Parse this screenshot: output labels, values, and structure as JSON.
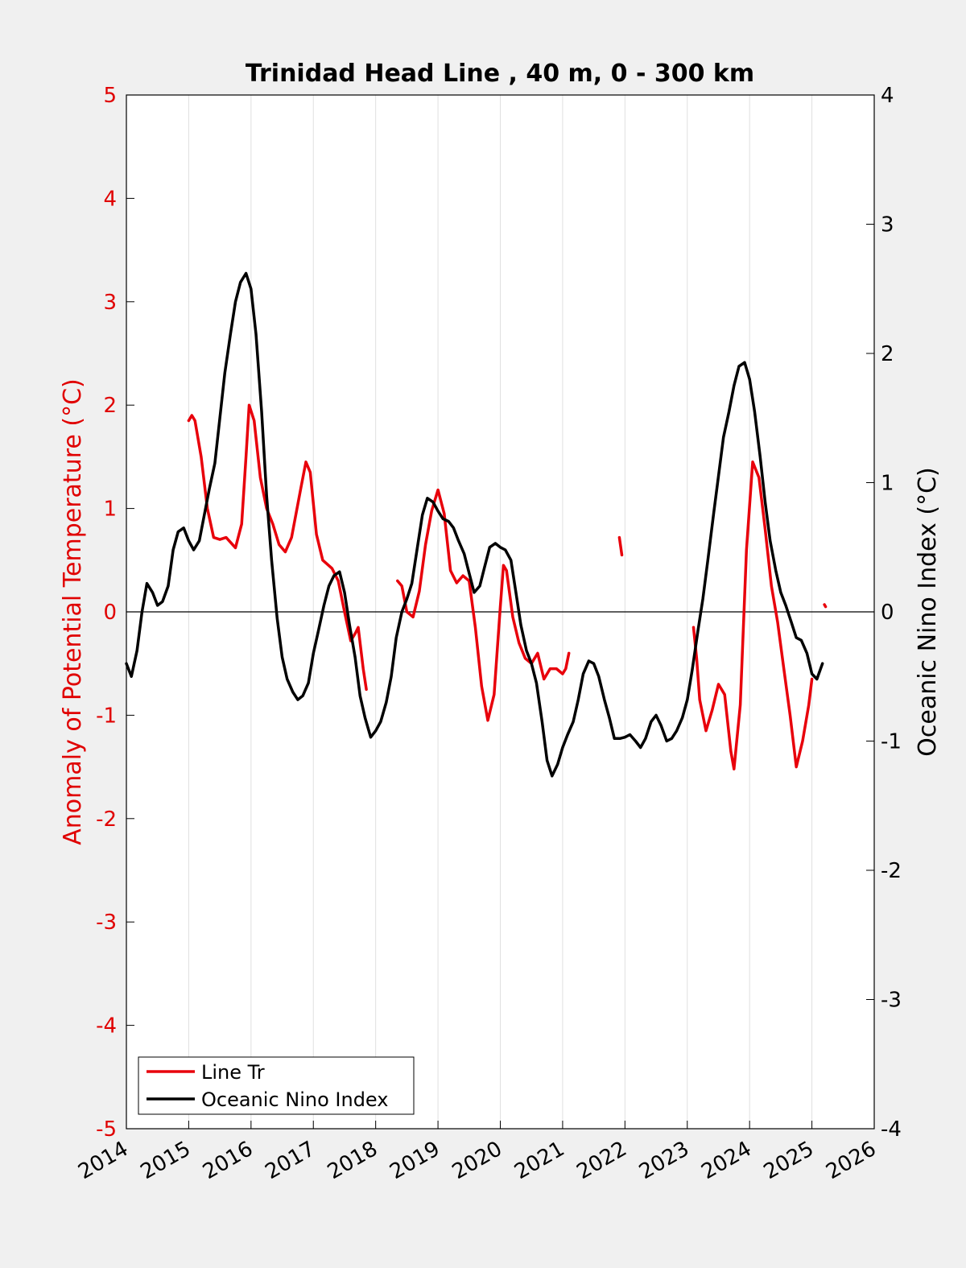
{
  "chart_data": {
    "type": "line",
    "title": "Trinidad Head Line , 40 m, 0 - 300 km",
    "ylabel_left": "Anomaly of Potential Temperature (°C)",
    "ylabel_right": "Oceanic Nino Index (°C)",
    "xlim": [
      2014,
      2026
    ],
    "ylim_left": [
      -5,
      5
    ],
    "ylim_right": [
      -4,
      4
    ],
    "x_ticks": [
      "2014",
      "2015",
      "2016",
      "2017",
      "2018",
      "2019",
      "2020",
      "2021",
      "2022",
      "2023",
      "2024",
      "2025",
      "2026"
    ],
    "y_left_ticks": [
      "5",
      "4",
      "3",
      "2",
      "1",
      "0",
      "-1",
      "-2",
      "-3",
      "-4",
      "-5"
    ],
    "y_right_ticks": [
      "4",
      "3",
      "2",
      "1",
      "0",
      "-1",
      "-2",
      "-3",
      "-4"
    ],
    "vertical_grid": true,
    "zero_line": true,
    "legend_position": "bottom-left",
    "colors": {
      "left_axis": "#e00000",
      "line_tr": "#e8000b",
      "oni": "#000000",
      "plot_bg": "#ffffff",
      "figure_bg": "#f0f0f0",
      "grid": "#e0e0e0"
    },
    "series": [
      {
        "name": "Line Tr",
        "axis": "left",
        "color": "#e8000b",
        "segments": [
          [
            [
              2015.0,
              1.85
            ],
            [
              2015.05,
              1.9
            ],
            [
              2015.1,
              1.85
            ],
            [
              2015.2,
              1.5
            ],
            [
              2015.3,
              1.0
            ],
            [
              2015.4,
              0.72
            ],
            [
              2015.5,
              0.7
            ],
            [
              2015.6,
              0.72
            ],
            [
              2015.75,
              0.62
            ],
            [
              2015.85,
              0.85
            ],
            [
              2015.92,
              1.5
            ],
            [
              2015.97,
              2.0
            ],
            [
              2016.05,
              1.85
            ],
            [
              2016.15,
              1.3
            ],
            [
              2016.25,
              1.0
            ],
            [
              2016.35,
              0.85
            ],
            [
              2016.45,
              0.65
            ],
            [
              2016.55,
              0.58
            ],
            [
              2016.65,
              0.72
            ],
            [
              2016.8,
              1.2
            ],
            [
              2016.88,
              1.45
            ],
            [
              2016.95,
              1.35
            ],
            [
              2017.05,
              0.75
            ],
            [
              2017.15,
              0.5
            ],
            [
              2017.3,
              0.42
            ],
            [
              2017.4,
              0.3
            ],
            [
              2017.5,
              0.0
            ],
            [
              2017.6,
              -0.28
            ],
            [
              2017.68,
              -0.2
            ],
            [
              2017.72,
              -0.15
            ],
            [
              2017.8,
              -0.55
            ],
            [
              2017.85,
              -0.75
            ]
          ],
          [
            [
              2018.35,
              0.3
            ],
            [
              2018.42,
              0.25
            ],
            [
              2018.5,
              0.0
            ],
            [
              2018.6,
              -0.05
            ],
            [
              2018.7,
              0.2
            ],
            [
              2018.8,
              0.65
            ],
            [
              2018.9,
              0.98
            ],
            [
              2019.0,
              1.18
            ],
            [
              2019.1,
              0.95
            ],
            [
              2019.2,
              0.4
            ],
            [
              2019.3,
              0.28
            ],
            [
              2019.4,
              0.35
            ],
            [
              2019.5,
              0.3
            ],
            [
              2019.6,
              -0.15
            ],
            [
              2019.7,
              -0.72
            ],
            [
              2019.8,
              -1.05
            ],
            [
              2019.9,
              -0.8
            ],
            [
              2020.0,
              0.05
            ],
            [
              2020.05,
              0.45
            ],
            [
              2020.1,
              0.4
            ],
            [
              2020.2,
              -0.05
            ],
            [
              2020.3,
              -0.3
            ],
            [
              2020.4,
              -0.45
            ],
            [
              2020.5,
              -0.5
            ],
            [
              2020.6,
              -0.4
            ],
            [
              2020.7,
              -0.65
            ],
            [
              2020.8,
              -0.55
            ],
            [
              2020.9,
              -0.55
            ],
            [
              2021.0,
              -0.6
            ],
            [
              2021.05,
              -0.55
            ],
            [
              2021.1,
              -0.4
            ]
          ],
          [
            [
              2021.91,
              0.72
            ],
            [
              2021.95,
              0.55
            ]
          ],
          [
            [
              2023.1,
              -0.15
            ],
            [
              2023.15,
              -0.45
            ],
            [
              2023.2,
              -0.85
            ],
            [
              2023.3,
              -1.15
            ],
            [
              2023.4,
              -0.95
            ],
            [
              2023.5,
              -0.7
            ],
            [
              2023.6,
              -0.8
            ],
            [
              2023.7,
              -1.35
            ],
            [
              2023.75,
              -1.52
            ],
            [
              2023.85,
              -0.9
            ],
            [
              2023.95,
              0.6
            ],
            [
              2024.05,
              1.45
            ],
            [
              2024.15,
              1.3
            ],
            [
              2024.25,
              0.8
            ],
            [
              2024.35,
              0.25
            ],
            [
              2024.45,
              -0.1
            ],
            [
              2024.55,
              -0.55
            ],
            [
              2024.65,
              -1.0
            ],
            [
              2024.75,
              -1.5
            ],
            [
              2024.85,
              -1.25
            ],
            [
              2024.95,
              -0.9
            ],
            [
              2025.0,
              -0.65
            ]
          ],
          [
            [
              2025.2,
              0.07
            ],
            [
              2025.22,
              0.05
            ]
          ]
        ]
      },
      {
        "name": "Oceanic Nino Index",
        "axis": "right",
        "color": "#000000",
        "points": [
          [
            2014.0,
            -0.4
          ],
          [
            2014.08,
            -0.5
          ],
          [
            2014.17,
            -0.3
          ],
          [
            2014.25,
            0.0
          ],
          [
            2014.33,
            0.22
          ],
          [
            2014.42,
            0.15
          ],
          [
            2014.5,
            0.05
          ],
          [
            2014.58,
            0.08
          ],
          [
            2014.67,
            0.2
          ],
          [
            2014.75,
            0.48
          ],
          [
            2014.83,
            0.62
          ],
          [
            2014.92,
            0.65
          ],
          [
            2015.0,
            0.55
          ],
          [
            2015.08,
            0.48
          ],
          [
            2015.17,
            0.55
          ],
          [
            2015.25,
            0.75
          ],
          [
            2015.33,
            0.95
          ],
          [
            2015.42,
            1.15
          ],
          [
            2015.5,
            1.5
          ],
          [
            2015.58,
            1.85
          ],
          [
            2015.67,
            2.15
          ],
          [
            2015.75,
            2.4
          ],
          [
            2015.83,
            2.55
          ],
          [
            2015.92,
            2.62
          ],
          [
            2016.0,
            2.5
          ],
          [
            2016.08,
            2.15
          ],
          [
            2016.17,
            1.55
          ],
          [
            2016.25,
            0.9
          ],
          [
            2016.33,
            0.4
          ],
          [
            2016.42,
            -0.05
          ],
          [
            2016.5,
            -0.35
          ],
          [
            2016.58,
            -0.52
          ],
          [
            2016.67,
            -0.62
          ],
          [
            2016.75,
            -0.68
          ],
          [
            2016.83,
            -0.65
          ],
          [
            2016.92,
            -0.55
          ],
          [
            2017.0,
            -0.32
          ],
          [
            2017.08,
            -0.15
          ],
          [
            2017.17,
            0.05
          ],
          [
            2017.25,
            0.2
          ],
          [
            2017.33,
            0.28
          ],
          [
            2017.42,
            0.31
          ],
          [
            2017.5,
            0.15
          ],
          [
            2017.58,
            -0.1
          ],
          [
            2017.67,
            -0.35
          ],
          [
            2017.75,
            -0.65
          ],
          [
            2017.83,
            -0.82
          ],
          [
            2017.92,
            -0.97
          ],
          [
            2018.0,
            -0.92
          ],
          [
            2018.08,
            -0.85
          ],
          [
            2018.17,
            -0.7
          ],
          [
            2018.25,
            -0.5
          ],
          [
            2018.33,
            -0.2
          ],
          [
            2018.42,
            0.0
          ],
          [
            2018.5,
            0.1
          ],
          [
            2018.58,
            0.22
          ],
          [
            2018.67,
            0.5
          ],
          [
            2018.75,
            0.75
          ],
          [
            2018.83,
            0.88
          ],
          [
            2018.92,
            0.85
          ],
          [
            2019.0,
            0.78
          ],
          [
            2019.08,
            0.72
          ],
          [
            2019.17,
            0.7
          ],
          [
            2019.25,
            0.65
          ],
          [
            2019.33,
            0.55
          ],
          [
            2019.42,
            0.45
          ],
          [
            2019.5,
            0.3
          ],
          [
            2019.58,
            0.15
          ],
          [
            2019.67,
            0.2
          ],
          [
            2019.75,
            0.35
          ],
          [
            2019.83,
            0.5
          ],
          [
            2019.92,
            0.53
          ],
          [
            2020.0,
            0.5
          ],
          [
            2020.08,
            0.48
          ],
          [
            2020.17,
            0.4
          ],
          [
            2020.25,
            0.15
          ],
          [
            2020.33,
            -0.1
          ],
          [
            2020.42,
            -0.3
          ],
          [
            2020.5,
            -0.4
          ],
          [
            2020.58,
            -0.55
          ],
          [
            2020.67,
            -0.85
          ],
          [
            2020.75,
            -1.15
          ],
          [
            2020.83,
            -1.27
          ],
          [
            2020.92,
            -1.18
          ],
          [
            2021.0,
            -1.05
          ],
          [
            2021.08,
            -0.95
          ],
          [
            2021.17,
            -0.85
          ],
          [
            2021.25,
            -0.68
          ],
          [
            2021.33,
            -0.48
          ],
          [
            2021.42,
            -0.38
          ],
          [
            2021.5,
            -0.4
          ],
          [
            2021.58,
            -0.5
          ],
          [
            2021.67,
            -0.68
          ],
          [
            2021.75,
            -0.82
          ],
          [
            2021.83,
            -0.98
          ],
          [
            2021.92,
            -0.98
          ],
          [
            2022.0,
            -0.97
          ],
          [
            2022.08,
            -0.95
          ],
          [
            2022.17,
            -1.0
          ],
          [
            2022.25,
            -1.05
          ],
          [
            2022.33,
            -0.98
          ],
          [
            2022.42,
            -0.85
          ],
          [
            2022.5,
            -0.8
          ],
          [
            2022.58,
            -0.88
          ],
          [
            2022.67,
            -1.0
          ],
          [
            2022.75,
            -0.98
          ],
          [
            2022.83,
            -0.92
          ],
          [
            2022.92,
            -0.82
          ],
          [
            2023.0,
            -0.68
          ],
          [
            2023.08,
            -0.45
          ],
          [
            2023.17,
            -0.15
          ],
          [
            2023.25,
            0.1
          ],
          [
            2023.33,
            0.4
          ],
          [
            2023.42,
            0.75
          ],
          [
            2023.5,
            1.05
          ],
          [
            2023.58,
            1.35
          ],
          [
            2023.67,
            1.55
          ],
          [
            2023.75,
            1.75
          ],
          [
            2023.83,
            1.9
          ],
          [
            2023.92,
            1.93
          ],
          [
            2024.0,
            1.8
          ],
          [
            2024.08,
            1.55
          ],
          [
            2024.17,
            1.2
          ],
          [
            2024.25,
            0.85
          ],
          [
            2024.33,
            0.55
          ],
          [
            2024.42,
            0.32
          ],
          [
            2024.5,
            0.15
          ],
          [
            2024.58,
            0.05
          ],
          [
            2024.67,
            -0.08
          ],
          [
            2024.75,
            -0.2
          ],
          [
            2024.83,
            -0.22
          ],
          [
            2024.92,
            -0.32
          ],
          [
            2025.0,
            -0.48
          ],
          [
            2025.08,
            -0.52
          ],
          [
            2025.17,
            -0.4
          ]
        ]
      }
    ]
  }
}
